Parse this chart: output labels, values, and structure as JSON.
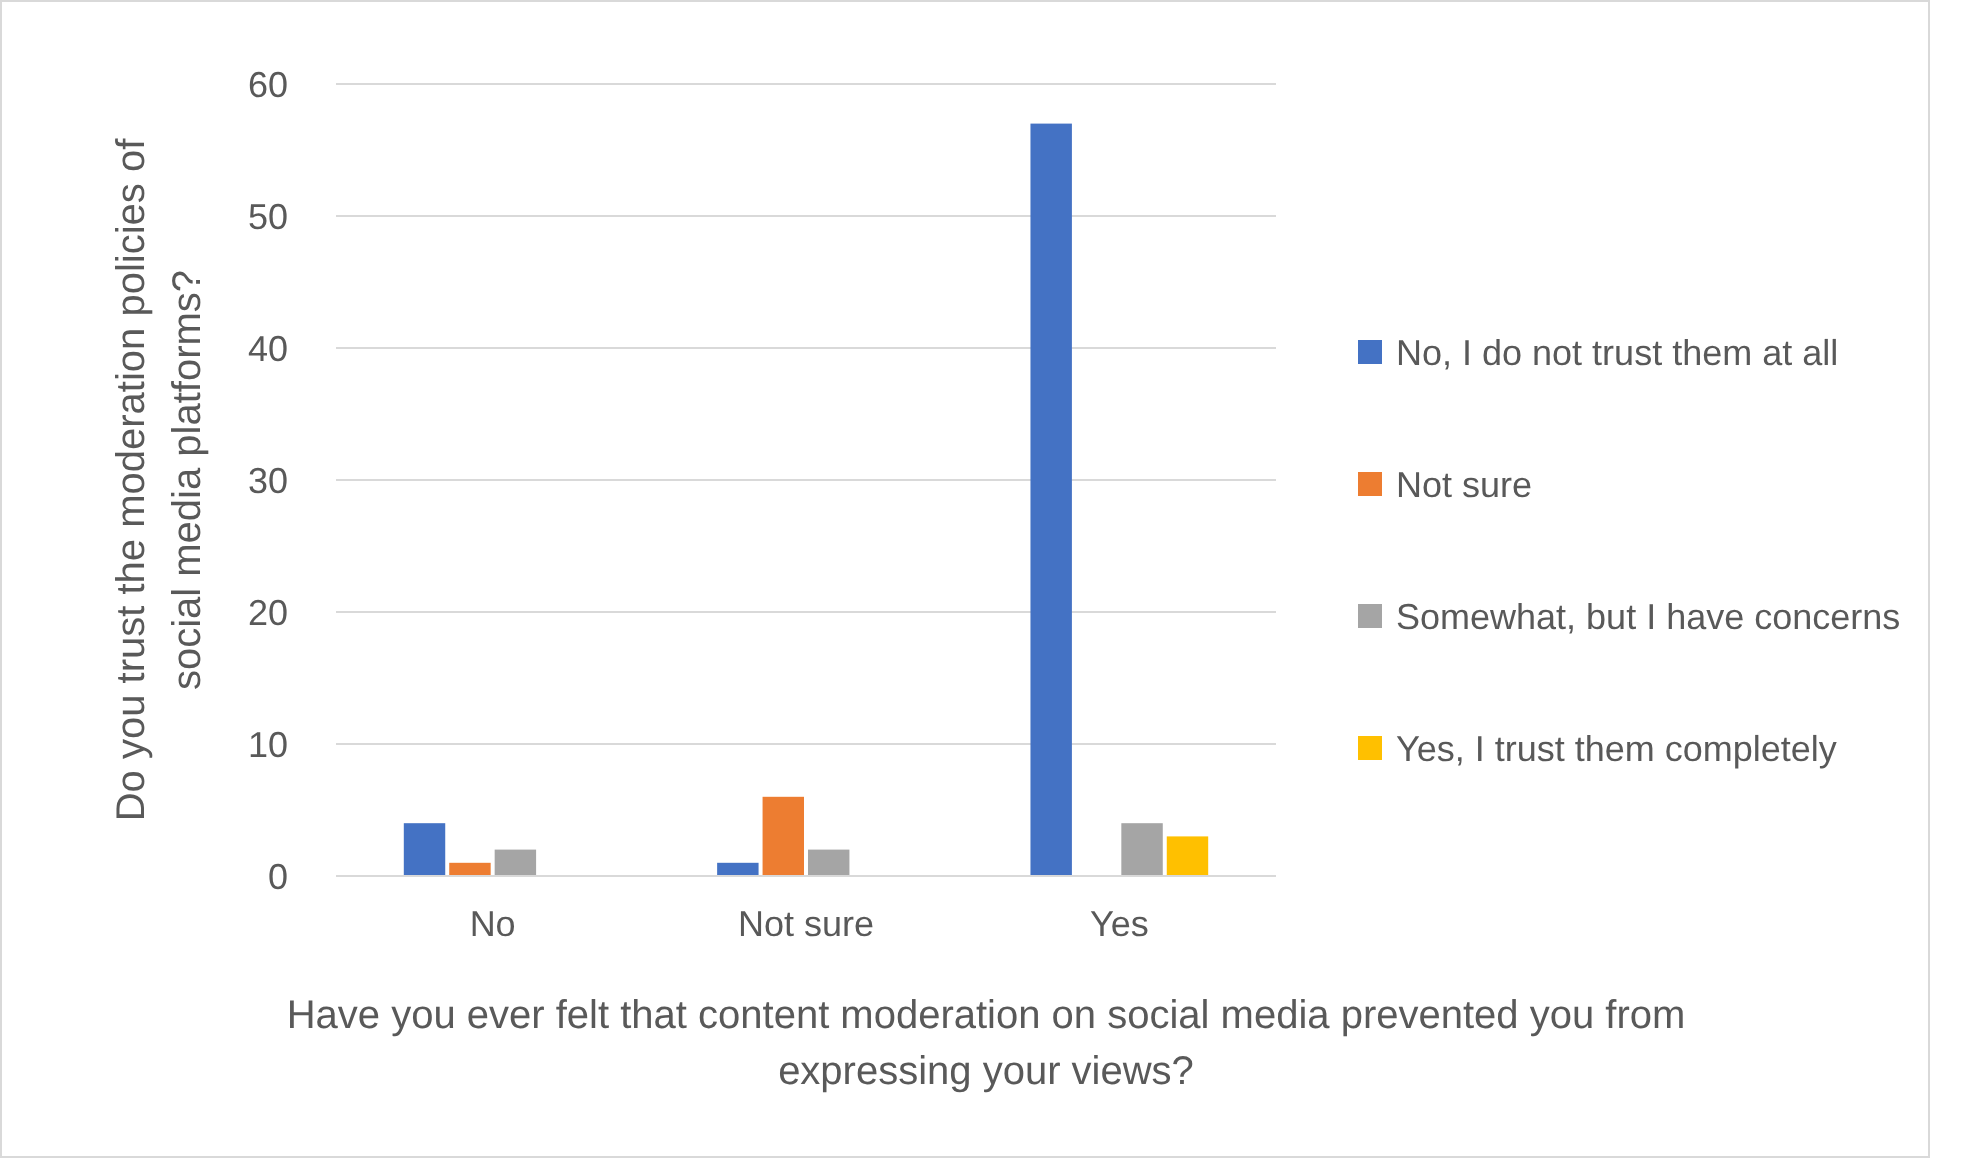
{
  "chart_data": {
    "type": "bar",
    "xlabel": "Have you ever felt that content moderation on social media prevented you from expressing your views?",
    "ylabel": "Do you trust the moderation policies of social media platforms?",
    "categories": [
      "No",
      "Not sure",
      "Yes"
    ],
    "series": [
      {
        "name": "No, I do not trust them at all",
        "color": "#4472c4",
        "values": [
          4,
          1,
          57
        ]
      },
      {
        "name": "Not sure",
        "color": "#ed7d31",
        "values": [
          1,
          6,
          null
        ]
      },
      {
        "name": "Somewhat, but I have concerns",
        "color": "#a5a5a5",
        "values": [
          2,
          2,
          4
        ]
      },
      {
        "name": "Yes, I trust them completely",
        "color": "#ffc000",
        "values": [
          null,
          null,
          3
        ]
      }
    ],
    "ylim": [
      0,
      60
    ],
    "yticks": [
      0,
      10,
      20,
      30,
      40,
      50,
      60
    ],
    "grid": "y",
    "legend": "right"
  }
}
